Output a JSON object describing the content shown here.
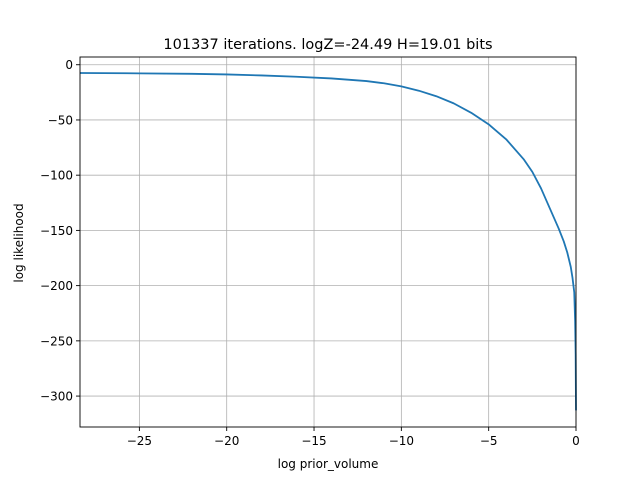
{
  "chart_data": {
    "type": "line",
    "title": "101337 iterations. logZ=-24.49 H=19.01 bits",
    "xlabel": "log prior_volume",
    "ylabel": "log likelihood",
    "xlim": [
      -28.4,
      0
    ],
    "ylim": [
      -328,
      7
    ],
    "xticks": [
      -25,
      -20,
      -15,
      -10,
      -5,
      0
    ],
    "xtick_labels": [
      "−25",
      "−20",
      "−15",
      "−10",
      "−5",
      "0"
    ],
    "yticks": [
      0,
      -50,
      -100,
      -150,
      -200,
      -250,
      -300
    ],
    "ytick_labels": [
      "0",
      "−50",
      "−100",
      "−150",
      "−200",
      "−250",
      "−300"
    ],
    "grid": true,
    "legend": "none",
    "series": [
      {
        "color": "#1f77b4",
        "x": [
          -28.4,
          -25,
          -22,
          -20,
          -18,
          -16,
          -14,
          -12,
          -11,
          -10,
          -9,
          -8,
          -7,
          -6,
          -5,
          -4,
          -3,
          -2.5,
          -2,
          -1.5,
          -1,
          -0.7,
          -0.5,
          -0.3,
          -0.2,
          -0.1,
          -0.05,
          -0.02,
          0
        ],
        "y": [
          -7.5,
          -7.8,
          -8.2,
          -8.8,
          -9.7,
          -10.9,
          -12.4,
          -14.8,
          -16.8,
          -19.6,
          -23.5,
          -28.5,
          -35,
          -43.5,
          -54,
          -67.5,
          -85.5,
          -97,
          -112,
          -130,
          -148,
          -160,
          -170,
          -183,
          -193,
          -206,
          -232,
          -262,
          -313
        ]
      }
    ]
  }
}
